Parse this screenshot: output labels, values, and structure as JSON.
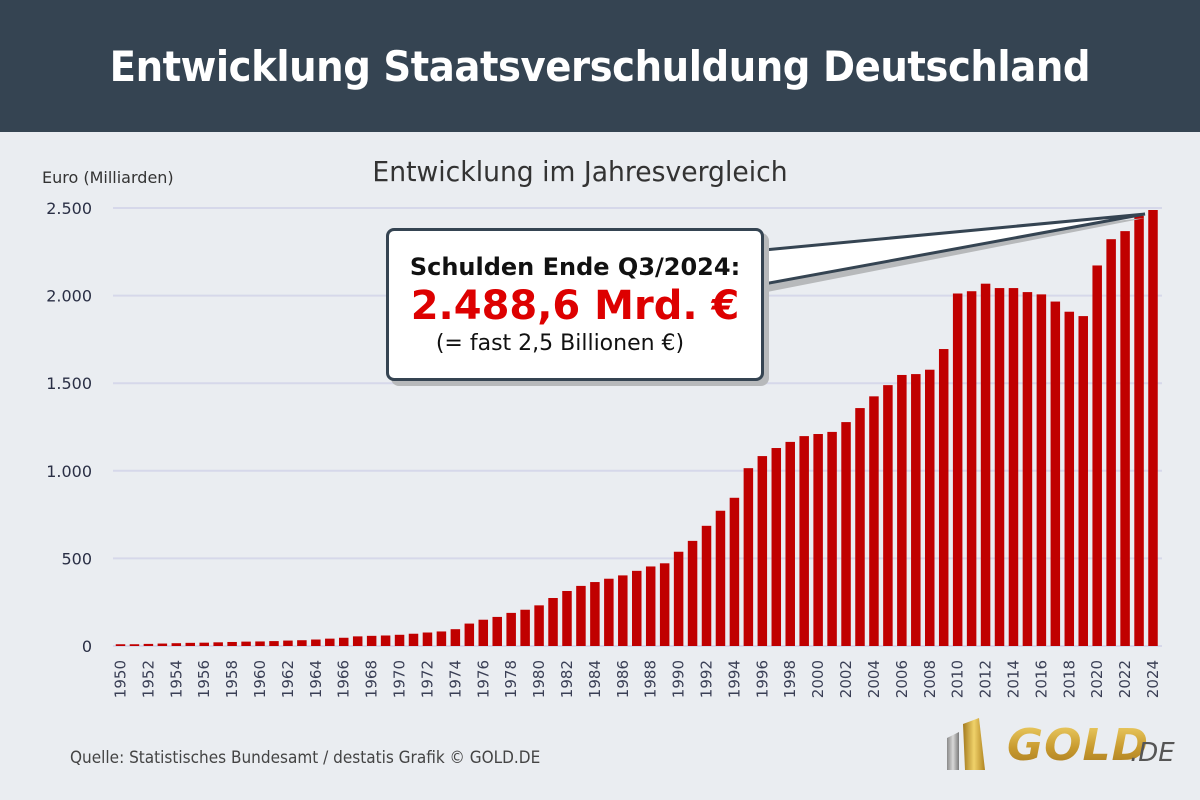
{
  "header": {
    "title": "Entwicklung Staatsverschuldung Deutschland"
  },
  "callout": {
    "line1": "Schulden Ende Q3/2024:",
    "line2": "2.488,6 Mrd. €",
    "line3": "(= fast 2,5 Billionen €)",
    "highlight_color": "#dd0000",
    "points_to_year": "2024"
  },
  "footer": {
    "source": "Quelle: Statistisches Bundesamt / destatis Grafik © GOLD.DE",
    "logo_word": "GOLD",
    "logo_tld": ".DE"
  },
  "chart_data": {
    "type": "bar",
    "title": "Entwicklung im Jahresvergleich",
    "xlabel": "",
    "ylabel": "Euro (Milliarden)",
    "ylim": [
      0,
      2500
    ],
    "yticks": [
      0,
      500,
      1000,
      1500,
      2000,
      2500
    ],
    "ytick_labels": [
      "0",
      "500",
      "1.000",
      "1.500",
      "2.000",
      "2.500"
    ],
    "grid": true,
    "bar_color": "#c00000",
    "categories": [
      "1950",
      "1951",
      "1952",
      "1953",
      "1954",
      "1955",
      "1956",
      "1957",
      "1958",
      "1959",
      "1960",
      "1961",
      "1962",
      "1963",
      "1964",
      "1965",
      "1966",
      "1967",
      "1968",
      "1969",
      "1970",
      "1971",
      "1972",
      "1973",
      "1974",
      "1975",
      "1976",
      "1977",
      "1978",
      "1979",
      "1980",
      "1981",
      "1982",
      "1983",
      "1984",
      "1985",
      "1986",
      "1987",
      "1988",
      "1989",
      "1990",
      "1991",
      "1992",
      "1993",
      "1994",
      "1995",
      "1996",
      "1997",
      "1998",
      "1999",
      "2000",
      "2001",
      "2002",
      "2003",
      "2004",
      "2005",
      "2006",
      "2007",
      "2008",
      "2009",
      "2010",
      "2011",
      "2012",
      "2013",
      "2014",
      "2015",
      "2016",
      "2017",
      "2018",
      "2019",
      "2020",
      "2021",
      "2022",
      "2023",
      "2024"
    ],
    "xtick_labels": [
      "1950",
      "1952",
      "1954",
      "1956",
      "1958",
      "1960",
      "1962",
      "1964",
      "1966",
      "1968",
      "1970",
      "1972",
      "1974",
      "1976",
      "1978",
      "1980",
      "1982",
      "1984",
      "1986",
      "1988",
      "1990",
      "1992",
      "1994",
      "1996",
      "1998",
      "2000",
      "2002",
      "2004",
      "2006",
      "2008",
      "2010",
      "2012",
      "2014",
      "2016",
      "2018",
      "2020",
      "2022",
      "2024"
    ],
    "values": [
      10,
      10,
      12,
      14,
      16,
      18,
      19,
      21,
      23,
      25,
      26,
      28,
      31,
      33,
      37,
      42,
      47,
      55,
      58,
      60,
      64,
      70,
      77,
      83,
      96,
      128,
      150,
      166,
      189,
      207,
      232,
      274,
      314,
      343,
      365,
      384,
      403,
      429,
      454,
      472,
      538,
      600,
      686,
      772,
      846,
      1015,
      1084,
      1130,
      1165,
      1198,
      1210,
      1222,
      1278,
      1358,
      1425,
      1489,
      1547,
      1552,
      1577,
      1695,
      2012,
      2025,
      2068,
      2043,
      2043,
      2020,
      2007,
      1966,
      1908,
      1883,
      2172,
      2322,
      2368,
      2455,
      2488.6
    ]
  }
}
